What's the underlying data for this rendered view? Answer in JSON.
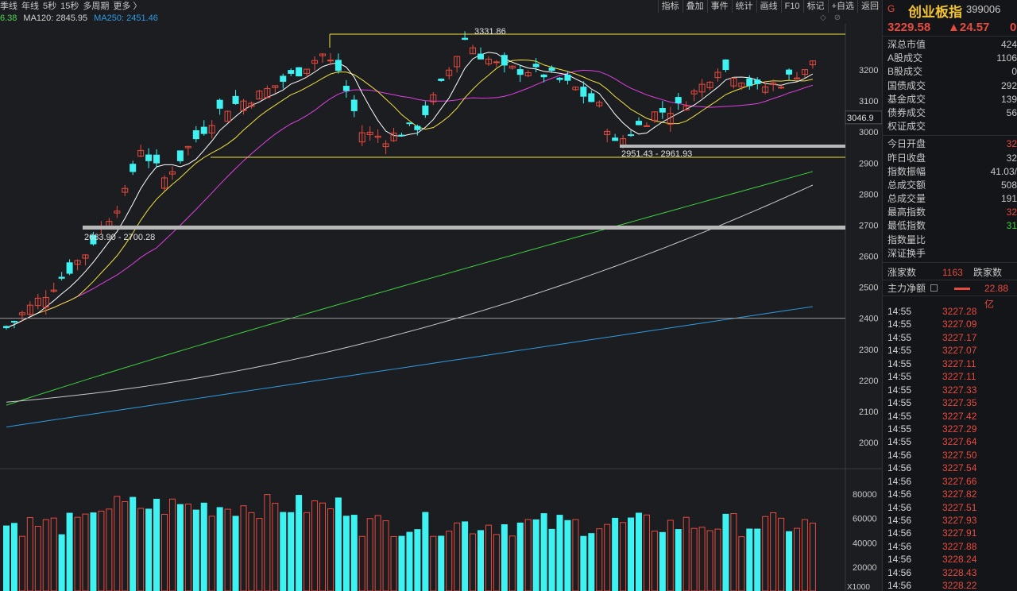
{
  "toolbar": {
    "tabs": [
      "季线",
      "年线",
      "5秒",
      "15秒",
      "多周期",
      "更多 〉"
    ],
    "buttons": [
      "指标",
      "叠加",
      "事件",
      "统计",
      "画线",
      "F10",
      "标记",
      "+自选",
      "返回"
    ]
  },
  "ma_legend": [
    {
      "label": "6.38",
      "color": "#4fd64f"
    },
    {
      "label": "MA120: 2845.95",
      "color": "#d0d0d0"
    },
    {
      "label": "MA250: 2451.46",
      "color": "#2e9be0"
    }
  ],
  "chart_data": {
    "type": "candlestick",
    "price_axis": {
      "min": 1900,
      "max": 3300,
      "ticks": [
        "3200",
        "3100",
        "3000",
        "2900",
        "2800",
        "2700",
        "2600",
        "2500",
        "2400",
        "2300",
        "2200",
        "2100",
        "2000"
      ]
    },
    "current_price_label": "3046.9",
    "annotations": {
      "high": "3331.86",
      "gap_upper": "2951.43 - 2961.93",
      "gap_lower": "2683.90 - 2700.28"
    },
    "volume_axis": {
      "ticks": [
        "80000",
        "60000",
        "40000",
        "20000"
      ],
      "unit": "X1000"
    },
    "colors": {
      "up": "#e84a3e",
      "down": "#3ff2f2",
      "ma5": "#ffffff",
      "ma10": "#f0e040",
      "ma20": "#e040e0",
      "ma60": "#3fd03f",
      "ma120": "#c8c8c8",
      "ma250": "#2e9be0"
    }
  },
  "panel": {
    "marker": "G",
    "name": "创业板指",
    "code": "399006",
    "price": "3229.58",
    "change": "▲24.57",
    "pct": "0",
    "stats": [
      {
        "label": "深总市值",
        "value": "424"
      },
      {
        "label": "A股成交",
        "value": "1106"
      },
      {
        "label": "B股成交",
        "value": "0"
      },
      {
        "label": "国债成交",
        "value": "292"
      },
      {
        "label": "基金成交",
        "value": "139"
      },
      {
        "label": "债券成交",
        "value": "56"
      },
      {
        "label": "权证成交",
        "value": ""
      }
    ],
    "stats2": [
      {
        "label": "今日开盘",
        "value": "32",
        "color": "#e84a3e"
      },
      {
        "label": "昨日收盘",
        "value": "32",
        "color": "#c8c8c8"
      },
      {
        "label": "指数振幅",
        "value": "41.03/",
        "color": "#c8c8c8"
      },
      {
        "label": "总成交额",
        "value": "508",
        "color": "#c8c8c8"
      },
      {
        "label": "总成交量",
        "value": "191",
        "color": "#c8c8c8"
      },
      {
        "label": "最高指数",
        "value": "32",
        "color": "#e84a3e"
      },
      {
        "label": "最低指数",
        "value": "31",
        "color": "#3fd03f"
      },
      {
        "label": "指数量比",
        "value": "",
        "color": "#c8c8c8"
      },
      {
        "label": "深证换手",
        "value": "",
        "color": "#c8c8c8"
      }
    ],
    "up_label": "涨家数",
    "up_value": "1163",
    "down_label": "跌家数",
    "main_label": "主力净额",
    "main_value": "22.88亿",
    "ticks": [
      {
        "t": "14:55",
        "p": "3227.28"
      },
      {
        "t": "14:55",
        "p": "3227.09"
      },
      {
        "t": "14:55",
        "p": "3227.17"
      },
      {
        "t": "14:55",
        "p": "3227.07"
      },
      {
        "t": "14:55",
        "p": "3227.11"
      },
      {
        "t": "14:55",
        "p": "3227.11"
      },
      {
        "t": "14:55",
        "p": "3227.33"
      },
      {
        "t": "14:55",
        "p": "3227.35"
      },
      {
        "t": "14:55",
        "p": "3227.42"
      },
      {
        "t": "14:55",
        "p": "3227.29"
      },
      {
        "t": "14:55",
        "p": "3227.64"
      },
      {
        "t": "14:56",
        "p": "3227.50"
      },
      {
        "t": "14:56",
        "p": "3227.54"
      },
      {
        "t": "14:56",
        "p": "3227.66"
      },
      {
        "t": "14:56",
        "p": "3227.82"
      },
      {
        "t": "14:56",
        "p": "3227.51"
      },
      {
        "t": "14:56",
        "p": "3227.93"
      },
      {
        "t": "14:56",
        "p": "3227.91"
      },
      {
        "t": "14:56",
        "p": "3227.88"
      },
      {
        "t": "14:56",
        "p": "3228.24"
      },
      {
        "t": "14:56",
        "p": "3228.43"
      },
      {
        "t": "14:56",
        "p": "3228.22"
      }
    ]
  }
}
